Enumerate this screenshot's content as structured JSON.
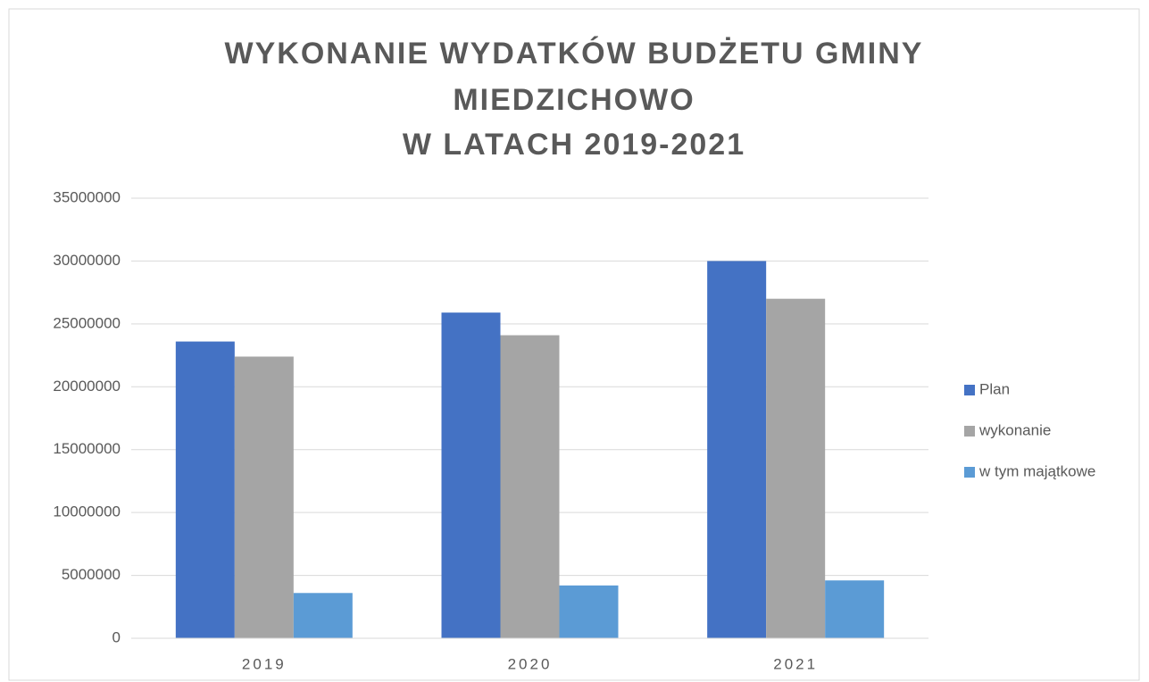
{
  "chart_data": {
    "type": "bar",
    "title": [
      "WYKONANIE WYDATKÓW BUDŻETU GMINY",
      "MIEDZICHOWO",
      "W LATACH 2019-2021"
    ],
    "categories": [
      "2019",
      "2020",
      "2021"
    ],
    "series": [
      {
        "name": "Plan",
        "color": "#4472c4",
        "values": [
          23600000,
          25900000,
          30000000
        ]
      },
      {
        "name": "wykonanie",
        "color": "#a5a5a5",
        "values": [
          22400000,
          24100000,
          27000000
        ]
      },
      {
        "name": "w tym majątkowe",
        "color": "#5b9bd5",
        "values": [
          3600000,
          4200000,
          4600000
        ]
      }
    ],
    "ylim": [
      0,
      35000000
    ],
    "yticks": [
      0,
      5000000,
      10000000,
      15000000,
      20000000,
      25000000,
      30000000,
      35000000
    ],
    "grid": true,
    "legend": "right"
  }
}
